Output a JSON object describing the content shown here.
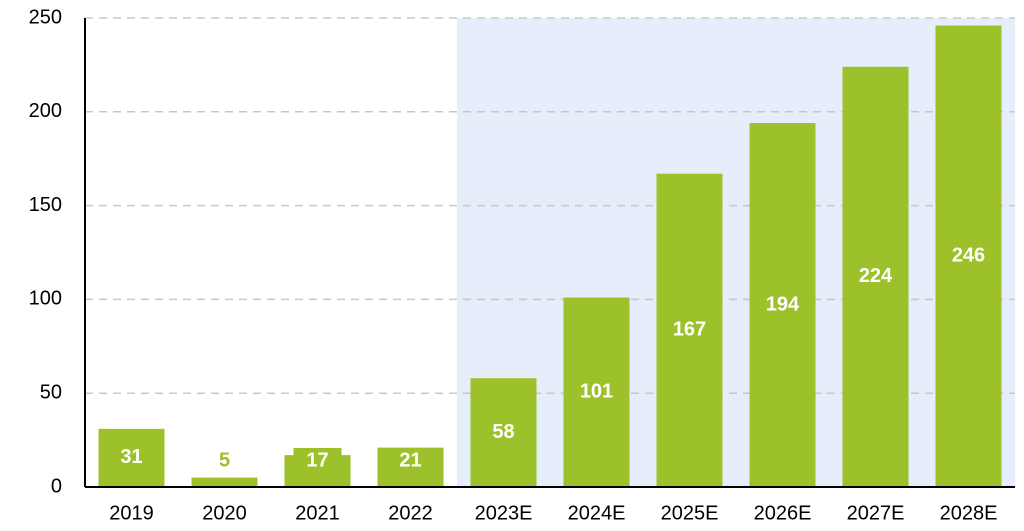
{
  "chart_data": {
    "type": "bar",
    "categories": [
      "2019",
      "2020",
      "2021",
      "2022",
      "2023E",
      "2024E",
      "2025E",
      "2026E",
      "2027E",
      "2028E"
    ],
    "values": [
      31,
      5,
      17,
      21,
      58,
      101,
      167,
      194,
      224,
      246
    ],
    "color": "#9dc12a",
    "highlight_from": "2023E",
    "highlight_color": "#e5eefa",
    "ylim": [
      0,
      250
    ],
    "yticks": [
      0,
      50,
      100,
      150,
      200,
      250
    ],
    "grid": true
  }
}
